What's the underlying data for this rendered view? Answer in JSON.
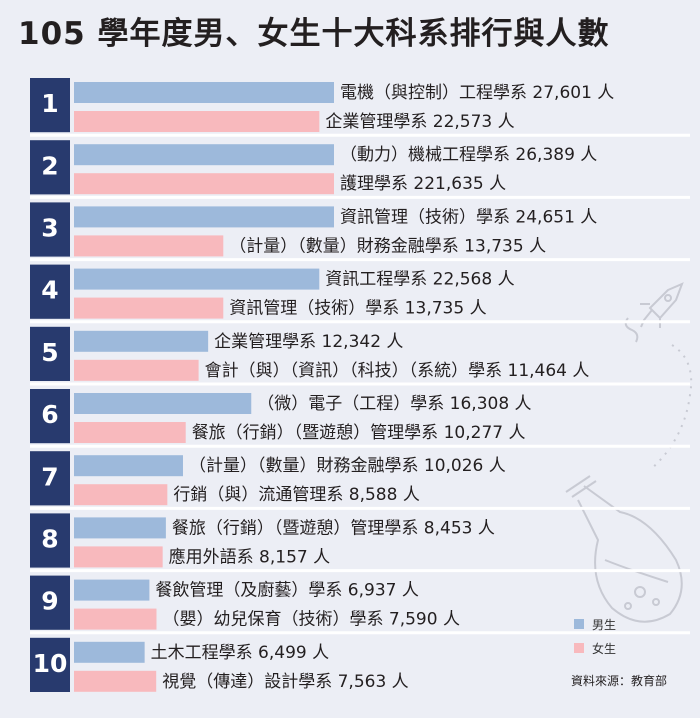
{
  "title": "105 學年度男、女生十大科系排行與人數",
  "chart_data": {
    "type": "bar",
    "orientation": "horizontal",
    "title": "105 學年度男、女生十大科系排行與人數",
    "ranks": [
      "1",
      "2",
      "3",
      "4",
      "5",
      "6",
      "7",
      "8",
      "9",
      "10"
    ],
    "series": [
      {
        "name": "男生",
        "color": "#9db9db",
        "categories": [
          "電機（與控制）工程學系",
          "（動力）機械工程學系",
          "資訊管理（技術）學系",
          "資訊工程學系",
          "企業管理學系",
          "（微）電子（工程）學系",
          "（計量）（數量）財務金融學系",
          "餐旅（行銷）（暨遊憩）管理學系",
          "餐飲管理（及廚藝）學系",
          "土木工程學系"
        ],
        "values": [
          27601,
          26389,
          24651,
          22568,
          12342,
          16308,
          10026,
          8453,
          6937,
          6499
        ],
        "value_labels": [
          "27,601",
          "26,389",
          "24,651",
          "22,568",
          "12,342",
          "16,308",
          "10,026",
          "8,453",
          "6,937",
          "6,499"
        ]
      },
      {
        "name": "女生",
        "color": "#f8b9bd",
        "categories": [
          "企業管理學系",
          "護理學系",
          "（計量）（數量）財務金融學系",
          "資訊管理（技術）學系",
          "會計（與）（資訊）（科技）（系統）學系",
          "餐旅（行銷）（暨遊憩）管理學系",
          "行銷（與）流通管理系",
          "應用外語系",
          "（嬰）幼兒保育（技術）學系",
          "視覺（傳達）設計學系"
        ],
        "values": [
          22573,
          221635,
          13735,
          13735,
          11464,
          10277,
          8588,
          8157,
          7590,
          7563
        ],
        "value_labels": [
          "22,573",
          "221,635",
          "13,735",
          "13,735",
          "11,464",
          "10,277",
          "8,588",
          "8,157",
          "7,590",
          "7,563"
        ]
      }
    ],
    "unit": "人",
    "legend_position": "bottom-right"
  },
  "legend": [
    {
      "label": "男生",
      "color": "#9db9db"
    },
    {
      "label": "女生",
      "color": "#f8b9bd"
    }
  ],
  "source": "資料來源：教育部",
  "colors": {
    "rank_box": "#283a6e",
    "background": "#eceef5",
    "divider": "#ffffff"
  }
}
